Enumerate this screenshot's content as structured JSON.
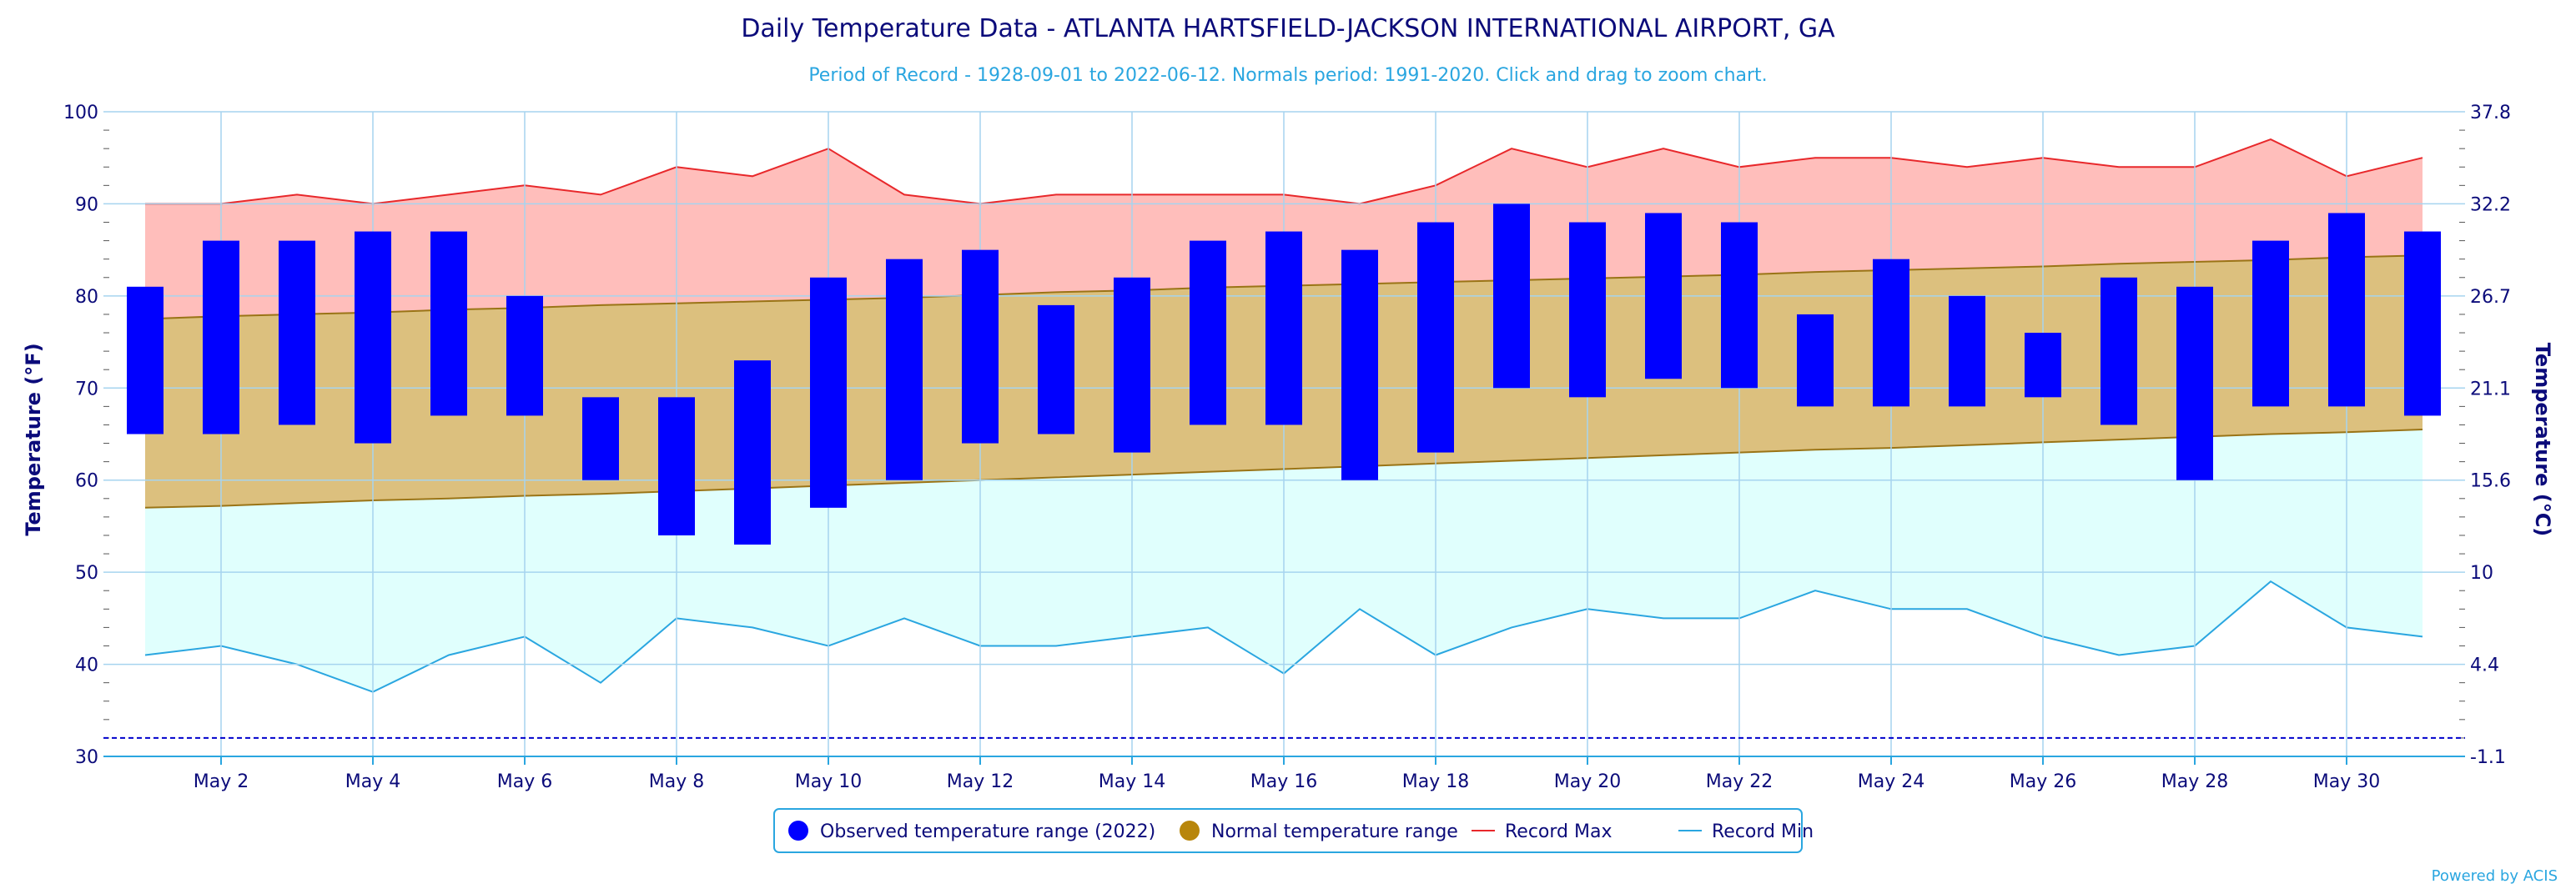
{
  "chart_data": {
    "type": "bar",
    "title": "Daily Temperature Data - ATLANTA HARTSFIELD-JACKSON INTERNATIONAL AIRPORT, GA",
    "subtitle": "Period of Record - 1928-09-01 to 2022-06-12. Normals period: 1991-2020. Click and drag to zoom chart.",
    "ylabel_left": "Temperature (°F)",
    "ylabel_right": "Temperature (°C)",
    "ylim": [
      30,
      100
    ],
    "y_ticks_left": [
      "100",
      "90",
      "80",
      "70",
      "60",
      "50",
      "40",
      "30"
    ],
    "y_ticks_right": [
      "37.8",
      "32.2",
      "26.7",
      "21.1",
      "15.6",
      "10",
      "4.4",
      "-1.1"
    ],
    "x_tick_labels": [
      "May 2",
      "May 4",
      "May 6",
      "May 8",
      "May 10",
      "May 12",
      "May 14",
      "May 16",
      "May 18",
      "May 20",
      "May 22",
      "May 24",
      "May 26",
      "May 28",
      "May 30"
    ],
    "days": [
      1,
      2,
      3,
      4,
      5,
      6,
      7,
      8,
      9,
      10,
      11,
      12,
      13,
      14,
      15,
      16,
      17,
      18,
      19,
      20,
      21,
      22,
      23,
      24,
      25,
      26,
      27,
      28,
      29,
      30,
      31
    ],
    "observed_high": [
      81,
      86,
      86,
      87,
      87,
      80,
      69,
      69,
      73,
      82,
      84,
      85,
      79,
      82,
      86,
      87,
      85,
      88,
      90,
      88,
      89,
      88,
      78,
      84,
      80,
      76,
      82,
      81,
      86,
      89,
      87
    ],
    "observed_low": [
      65,
      65,
      66,
      64,
      67,
      67,
      60,
      54,
      53,
      57,
      60,
      64,
      65,
      63,
      66,
      66,
      60,
      63,
      70,
      69,
      71,
      70,
      68,
      68,
      68,
      69,
      66,
      60,
      68,
      68,
      67
    ],
    "normal_high": [
      77.5,
      77.8,
      78.0,
      78.2,
      78.5,
      78.7,
      79.0,
      79.2,
      79.4,
      79.6,
      79.8,
      80.1,
      80.4,
      80.6,
      80.9,
      81.1,
      81.3,
      81.5,
      81.7,
      81.9,
      82.1,
      82.3,
      82.6,
      82.8,
      83.0,
      83.2,
      83.5,
      83.7,
      83.9,
      84.2,
      84.4
    ],
    "normal_low": [
      57.0,
      57.2,
      57.5,
      57.8,
      58.0,
      58.3,
      58.5,
      58.8,
      59.1,
      59.4,
      59.7,
      60.0,
      60.3,
      60.6,
      60.9,
      61.2,
      61.5,
      61.8,
      62.1,
      62.4,
      62.7,
      63.0,
      63.3,
      63.5,
      63.8,
      64.1,
      64.4,
      64.7,
      65.0,
      65.2,
      65.5
    ],
    "record_max": [
      90,
      90,
      91,
      90,
      91,
      92,
      91,
      94,
      93,
      96,
      91,
      90,
      91,
      91,
      91,
      91,
      90,
      92,
      96,
      94,
      96,
      94,
      95,
      95,
      94,
      95,
      94,
      94,
      97,
      93,
      95
    ],
    "record_min": [
      41,
      42,
      40,
      37,
      41,
      43,
      38,
      45,
      44,
      42,
      45,
      42,
      42,
      43,
      44,
      39,
      46,
      41,
      44,
      46,
      45,
      45,
      48,
      46,
      46,
      43,
      41,
      42,
      49,
      44,
      43
    ],
    "reference_line": 32,
    "legend": [
      {
        "label": "Observed temperature range (2022)",
        "color": "#0000ff",
        "symbol": "circle"
      },
      {
        "label": "Normal temperature range",
        "color": "#b8860b",
        "symbol": "circle"
      },
      {
        "label": "Record Max",
        "color": "#e8282b",
        "symbol": "line"
      },
      {
        "label": "Record Min",
        "color": "#2aa6e0",
        "symbol": "line"
      }
    ],
    "colors": {
      "observed": "#0000ff",
      "normal_fill": "#dcc07e",
      "normal_edge": "#9a7416",
      "record_max_fill": "#ffbebb",
      "record_max_line": "#e8282b",
      "record_min_fill": "#e0fffd",
      "record_min_line": "#2aa6e0",
      "grid": "#a6d4ef",
      "axis": "#2aa6e0",
      "reference": "#0000cc"
    },
    "grid": true,
    "legend_placement": "bottom-center"
  },
  "credit": "Powered by ACIS"
}
